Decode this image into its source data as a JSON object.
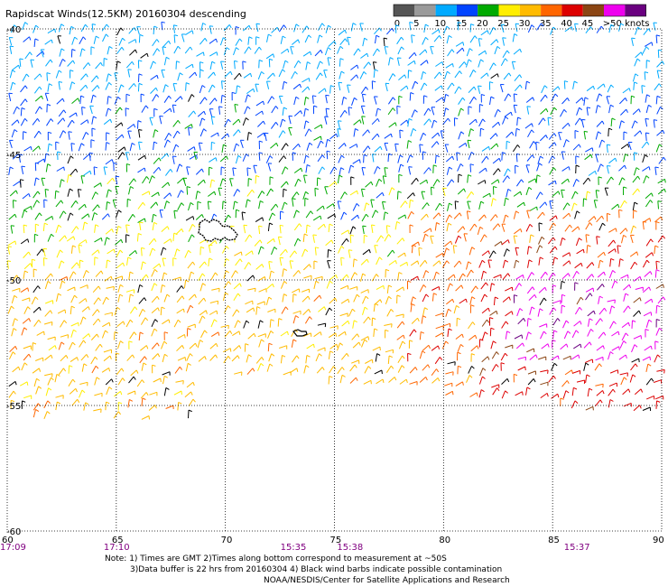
{
  "title": "Rapidscat Winds(12.5KM) 20160304 descending",
  "legend": {
    "labels": [
      "0",
      "5",
      "10",
      "15",
      "20",
      "25",
      "30",
      "35",
      "40",
      "45",
      ">50 knots"
    ],
    "colors": [
      "#555555",
      "#9a9a9a",
      "#00aaff",
      "#0044ff",
      "#00aa00",
      "#ffee00",
      "#ffbb00",
      "#ff6600",
      "#dd0000",
      "#8b4513",
      "#ee00ee",
      "#6a0080"
    ]
  },
  "map": {
    "lon_ticks": [
      "60",
      "65",
      "70",
      "75",
      "80",
      "85",
      "90"
    ],
    "lat_ticks": [
      "-40",
      "-45",
      "-50",
      "-55",
      "-60"
    ],
    "lon_range": [
      60,
      90
    ],
    "lat_range": [
      -40,
      -60
    ]
  },
  "times": [
    {
      "label": "17:09",
      "lon": 60
    },
    {
      "label": "17:10",
      "lon": 65
    },
    {
      "label": "15:35",
      "lon": 73.1
    },
    {
      "label": "15:38",
      "lon": 75.7
    },
    {
      "label": "15:37",
      "lon": 86.1
    }
  ],
  "notes": {
    "line1": "Note: 1) Times are GMT 2)Times along bottom correspond to measurement at ~50S",
    "line2": "3)Data buffer is 22 hrs from 20160304 4) Black wind barbs indicate possible contamination",
    "line3": "NOAA/NESDIS/Center for Satellite Applications and Research"
  }
}
